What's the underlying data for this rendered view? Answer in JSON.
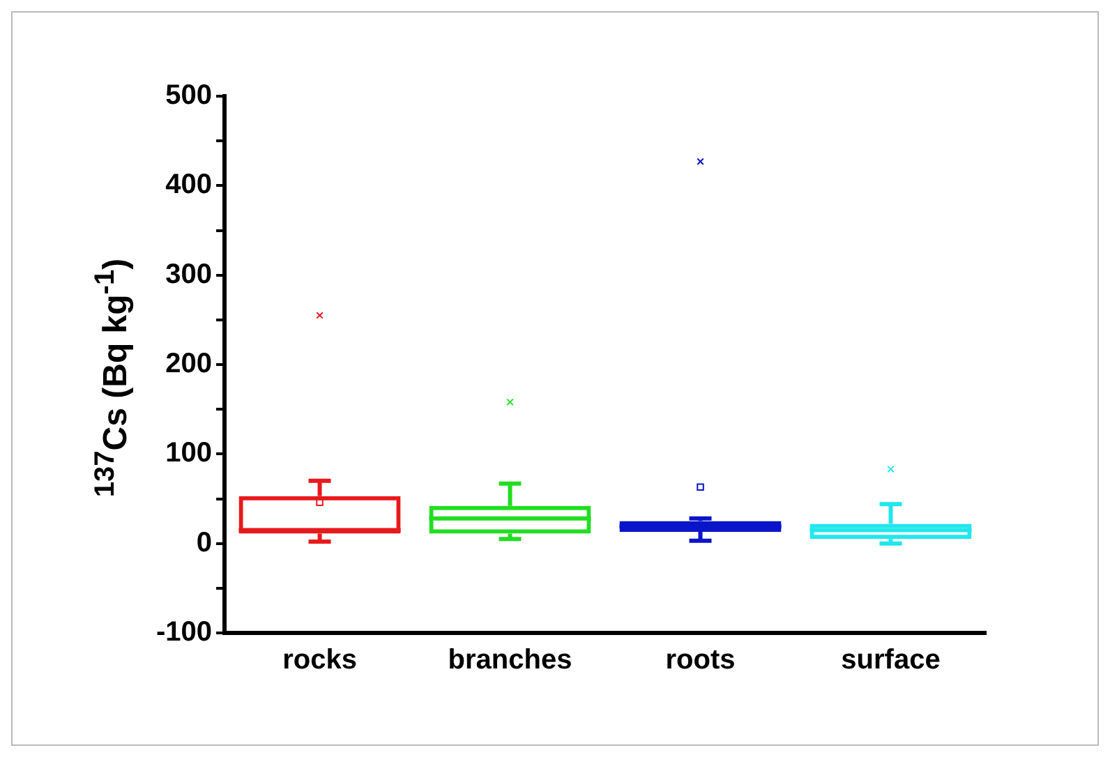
{
  "chart_data": {
    "type": "box",
    "ylabel": "$^{137}$Cs (Bq kg$^{-1}$)",
    "categories": [
      "rocks",
      "branches",
      "roots",
      "surface"
    ],
    "colors": [
      "#e8191c",
      "#22dd22",
      "#0a14c8",
      "#22e6ee"
    ],
    "boxes": [
      {
        "low": 2,
        "q1": 11,
        "median": 15,
        "q3": 53,
        "high": 70,
        "mean": 46,
        "outliers": [
          255
        ]
      },
      {
        "low": 5,
        "q1": 11,
        "median": 28,
        "q3": 42,
        "high": 67,
        "outliers": [
          158
        ]
      },
      {
        "low": 3,
        "q1": 13,
        "median": 19,
        "q3": 25,
        "high": 28,
        "mean": 63,
        "outliers": [
          427
        ]
      },
      {
        "low": 0,
        "q1": 5,
        "median": 15,
        "q3": 22,
        "high": 44,
        "outliers": [
          83
        ]
      }
    ],
    "ylim": [
      -100,
      500
    ],
    "yticks": [
      -100,
      {
        "value": -50,
        "label": null
      },
      0,
      {
        "value": 50,
        "label": null
      },
      100,
      {
        "value": 150,
        "label": null
      },
      200,
      {
        "value": 250,
        "label": null
      },
      300,
      {
        "value": 350,
        "label": null
      },
      400,
      {
        "value": 450,
        "label": null
      },
      500
    ],
    "grid": false,
    "legend": false
  }
}
